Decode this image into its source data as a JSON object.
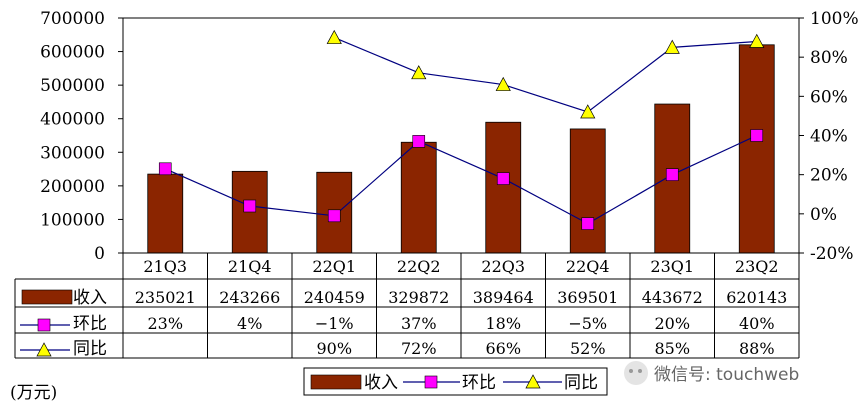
{
  "chart_data": {
    "type": "bar",
    "categories": [
      "21Q3",
      "21Q4",
      "22Q1",
      "22Q2",
      "22Q3",
      "22Q4",
      "23Q1",
      "23Q2"
    ],
    "series": [
      {
        "name": "收入",
        "kind": "bar",
        "axis": "left",
        "values": [
          235021,
          243266,
          240459,
          329872,
          389464,
          369501,
          443672,
          620143
        ],
        "labels": [
          "235021",
          "243266",
          "240459",
          "329872",
          "389464",
          "369501",
          "443672",
          "620143"
        ],
        "color": "#8B2500"
      },
      {
        "name": "环比",
        "kind": "line",
        "axis": "right",
        "marker": "square",
        "values": [
          23,
          4,
          -1,
          37,
          18,
          -5,
          20,
          40
        ],
        "labels": [
          "23%",
          "4%",
          "−1%",
          "37%",
          "18%",
          "−5%",
          "20%",
          "40%"
        ],
        "color": "#FF00FF",
        "line_color": "#000080"
      },
      {
        "name": "同比",
        "kind": "line",
        "axis": "right",
        "marker": "triangle",
        "values": [
          null,
          null,
          90,
          72,
          66,
          52,
          85,
          88
        ],
        "labels": [
          "",
          "",
          "90%",
          "72%",
          "66%",
          "52%",
          "85%",
          "88%"
        ],
        "color": "#FFFF00",
        "line_color": "#000080"
      }
    ],
    "left_axis": {
      "ylim": [
        0,
        700000
      ],
      "ticks": [
        {
          "value": 0,
          "label": "0"
        },
        {
          "value": 100000,
          "label": "100000"
        },
        {
          "value": 200000,
          "label": "200000"
        },
        {
          "value": 300000,
          "label": "300000"
        },
        {
          "value": 400000,
          "label": "400000"
        },
        {
          "value": 500000,
          "label": "500000"
        },
        {
          "value": 600000,
          "label": "600000"
        },
        {
          "value": 700000,
          "label": "700000"
        }
      ]
    },
    "right_axis": {
      "ylim": [
        -20,
        100
      ],
      "ticks": [
        {
          "value": -20,
          "label": "-20%"
        },
        {
          "value": 0,
          "label": "0%"
        },
        {
          "value": 20,
          "label": "20%"
        },
        {
          "value": 40,
          "label": "40%"
        },
        {
          "value": 60,
          "label": "60%"
        },
        {
          "value": 80,
          "label": "80%"
        },
        {
          "value": 100,
          "label": "100%"
        }
      ]
    },
    "unit_label": "(万元)",
    "legend_placement": "bottom-center"
  },
  "watermark": "微信号: touchweb"
}
